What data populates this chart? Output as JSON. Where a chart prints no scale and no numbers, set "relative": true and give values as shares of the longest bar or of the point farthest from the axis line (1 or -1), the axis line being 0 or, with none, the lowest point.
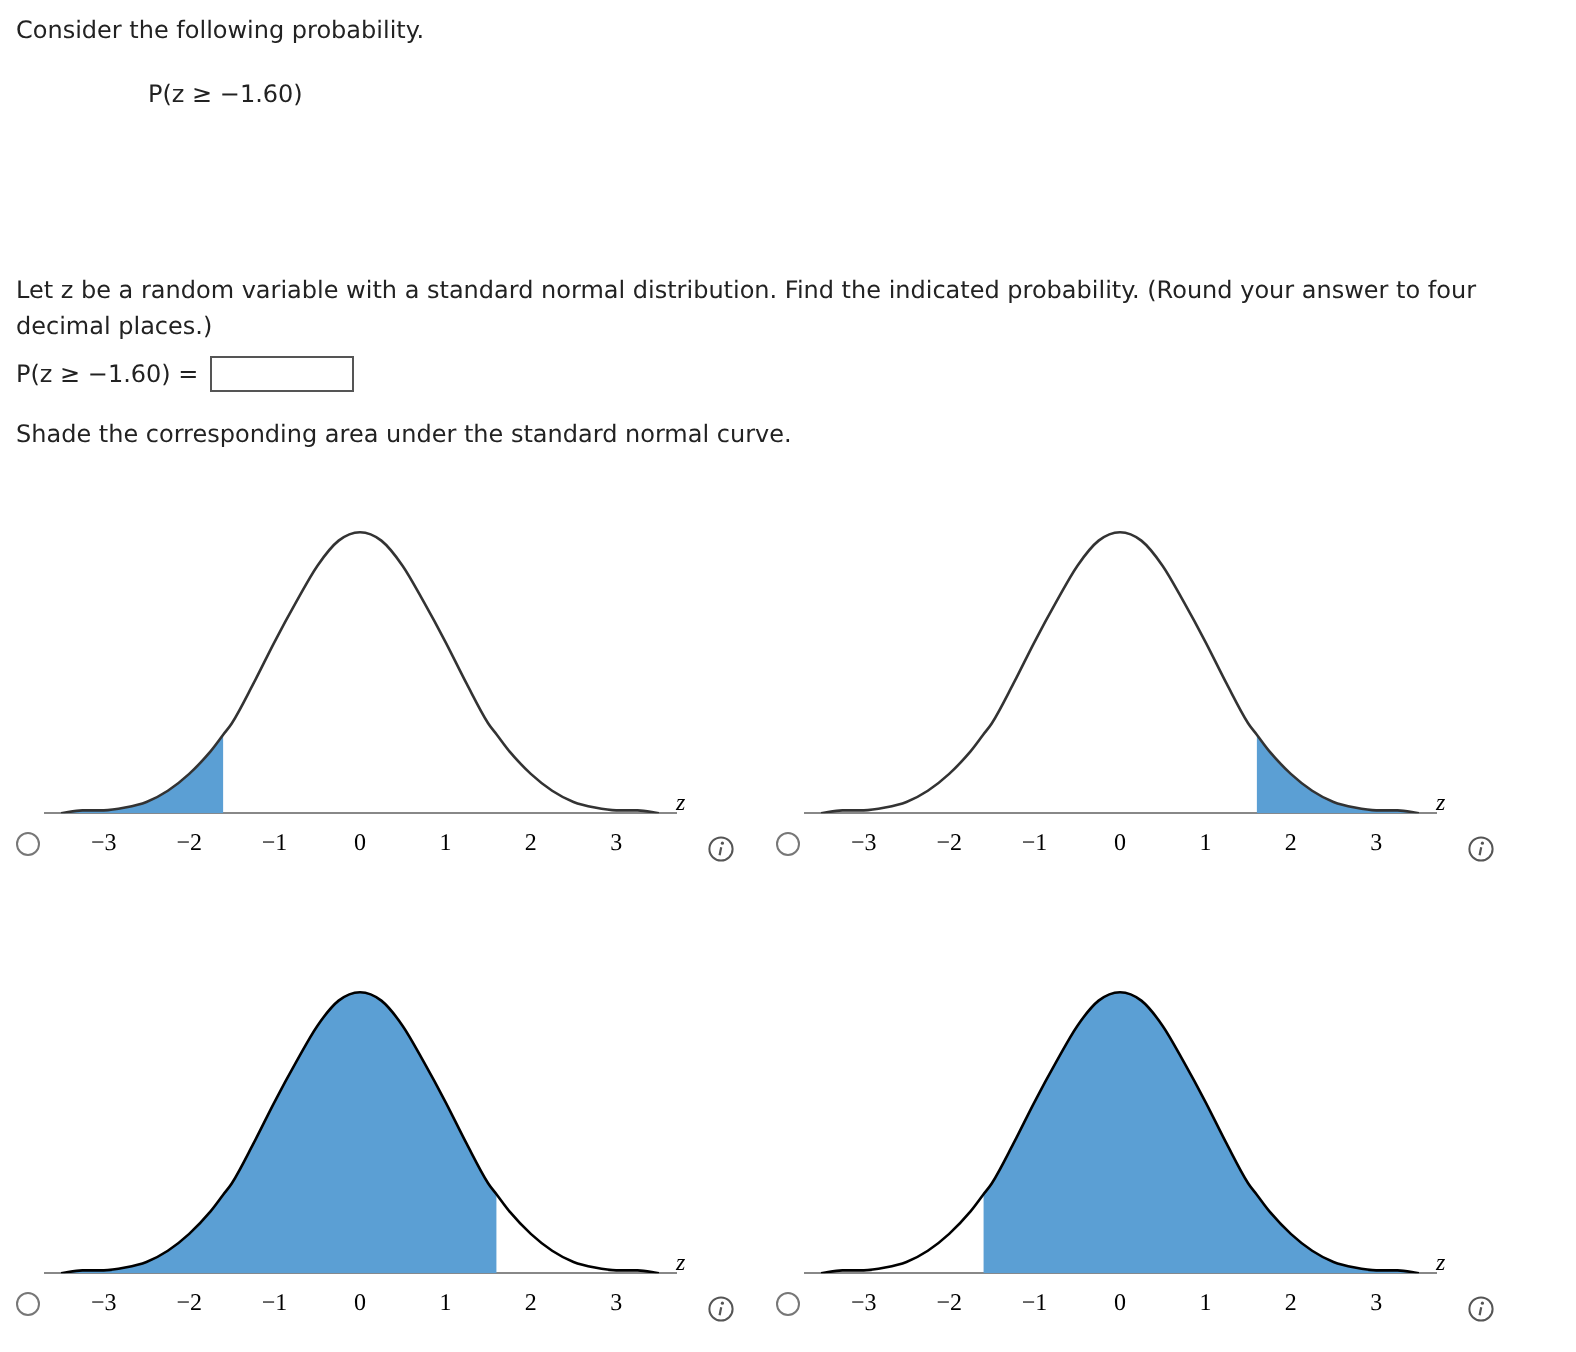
{
  "chart_data": [
    {
      "type": "other",
      "title": "Consider the following probability.",
      "annotations": [
        "P(z ≥ −1.60)",
        "Let z be a random variable with a standard normal distribution. Find the indicated probability. (Round your answer to four decimal places.)",
        "P(z ≥ −1.60) =",
        "Shade the corresponding area under the standard normal curve."
      ]
    },
    {
      "type": "area",
      "relative": true,
      "xlabel": "z",
      "xlim": [
        -3.7,
        3.7
      ],
      "xticks": [
        {
          "value": -3,
          "label": "−3"
        },
        {
          "value": -2,
          "label": "−2"
        },
        {
          "value": -1,
          "label": "−1"
        },
        0,
        1,
        2,
        3
      ],
      "tick_labels": "x",
      "legend": false,
      "grid": false,
      "x": [
        -3.5,
        -3.25,
        -3,
        -2.75,
        -2.5,
        -2.25,
        -2,
        -1.75,
        -1.6,
        -1.5,
        -1.25,
        -1,
        -0.75,
        -0.5,
        -0.25,
        0,
        0.25,
        0.5,
        0.75,
        1,
        1.25,
        1.5,
        1.6,
        1.75,
        2,
        2.25,
        2.5,
        2.75,
        3,
        3.25,
        3.5
      ],
      "series": [
        {
          "type": "area",
          "color": "#5b9fd4",
          "x": [
            -3.5,
            -3.25,
            -3,
            -2.75,
            -2.5,
            -2.25,
            -2,
            -1.75,
            -1.6
          ],
          "values": [
            0,
            0.01,
            0.01,
            0.02,
            0.04,
            0.08,
            0.14,
            0.22,
            0.28
          ]
        },
        {
          "type": "line",
          "color": "#333333",
          "values": [
            0,
            0.01,
            0.01,
            0.02,
            0.04,
            0.08,
            0.14,
            0.22,
            0.28,
            0.32,
            0.46,
            0.61,
            0.75,
            0.88,
            0.97,
            1,
            0.97,
            0.88,
            0.75,
            0.61,
            0.46,
            0.32,
            0.28,
            0.22,
            0.14,
            0.08,
            0.04,
            0.02,
            0.01,
            0.01,
            0
          ]
        }
      ]
    },
    {
      "type": "area",
      "relative": true,
      "xlabel": "z",
      "xlim": [
        -3.7,
        3.7
      ],
      "xticks": [
        {
          "value": -3,
          "label": "−3"
        },
        {
          "value": -2,
          "label": "−2"
        },
        {
          "value": -1,
          "label": "−1"
        },
        0,
        1,
        2,
        3
      ],
      "tick_labels": "x",
      "legend": false,
      "grid": false,
      "x": [
        -3.5,
        -3.25,
        -3,
        -2.75,
        -2.5,
        -2.25,
        -2,
        -1.75,
        -1.6,
        -1.5,
        -1.25,
        -1,
        -0.75,
        -0.5,
        -0.25,
        0,
        0.25,
        0.5,
        0.75,
        1,
        1.25,
        1.5,
        1.6,
        1.75,
        2,
        2.25,
        2.5,
        2.75,
        3,
        3.25,
        3.5
      ],
      "series": [
        {
          "type": "area",
          "color": "#5b9fd4",
          "x": [
            1.6,
            1.75,
            2,
            2.25,
            2.5,
            2.75,
            3,
            3.25,
            3.5
          ],
          "values": [
            0.28,
            0.22,
            0.14,
            0.08,
            0.04,
            0.02,
            0.01,
            0.01,
            0
          ]
        },
        {
          "type": "line",
          "color": "#333333",
          "values": [
            0,
            0.01,
            0.01,
            0.02,
            0.04,
            0.08,
            0.14,
            0.22,
            0.28,
            0.32,
            0.46,
            0.61,
            0.75,
            0.88,
            0.97,
            1,
            0.97,
            0.88,
            0.75,
            0.61,
            0.46,
            0.32,
            0.28,
            0.22,
            0.14,
            0.08,
            0.04,
            0.02,
            0.01,
            0.01,
            0
          ]
        }
      ]
    },
    {
      "type": "area",
      "relative": true,
      "xlabel": "z",
      "xlim": [
        -3.7,
        3.7
      ],
      "xticks": [
        {
          "value": -3,
          "label": "−3"
        },
        {
          "value": -2,
          "label": "−2"
        },
        {
          "value": -1,
          "label": "−1"
        },
        0,
        1,
        2,
        3
      ],
      "tick_labels": "x",
      "legend": false,
      "grid": false,
      "x": [
        -3.5,
        -3.25,
        -3,
        -2.75,
        -2.5,
        -2.25,
        -2,
        -1.75,
        -1.6,
        -1.5,
        -1.25,
        -1,
        -0.75,
        -0.5,
        -0.25,
        0,
        0.25,
        0.5,
        0.75,
        1,
        1.25,
        1.5,
        1.6,
        1.75,
        2,
        2.25,
        2.5,
        2.75,
        3,
        3.25,
        3.5
      ],
      "series": [
        {
          "type": "area",
          "color": "#5b9fd4",
          "x": [
            -3.5,
            -3.25,
            -3,
            -2.75,
            -2.5,
            -2.25,
            -2,
            -1.75,
            -1.6,
            -1.5,
            -1.25,
            -1,
            -0.75,
            -0.5,
            -0.25,
            0,
            0.25,
            0.5,
            0.75,
            1,
            1.25,
            1.5,
            1.6
          ],
          "values": [
            0,
            0.01,
            0.01,
            0.02,
            0.04,
            0.08,
            0.14,
            0.22,
            0.28,
            0.32,
            0.46,
            0.61,
            0.75,
            0.88,
            0.97,
            1,
            0.97,
            0.88,
            0.75,
            0.61,
            0.46,
            0.32,
            0.28
          ]
        },
        {
          "type": "line",
          "color": "#000000",
          "values": [
            0,
            0.01,
            0.01,
            0.02,
            0.04,
            0.08,
            0.14,
            0.22,
            0.28,
            0.32,
            0.46,
            0.61,
            0.75,
            0.88,
            0.97,
            1,
            0.97,
            0.88,
            0.75,
            0.61,
            0.46,
            0.32,
            0.28,
            0.22,
            0.14,
            0.08,
            0.04,
            0.02,
            0.01,
            0.01,
            0
          ]
        }
      ]
    },
    {
      "type": "area",
      "relative": true,
      "xlabel": "z",
      "xlim": [
        -3.7,
        3.7
      ],
      "xticks": [
        {
          "value": -3,
          "label": "−3"
        },
        {
          "value": -2,
          "label": "−2"
        },
        {
          "value": -1,
          "label": "−1"
        },
        0,
        1,
        2,
        3
      ],
      "tick_labels": "x",
      "legend": false,
      "grid": false,
      "x": [
        -3.5,
        -3.25,
        -3,
        -2.75,
        -2.5,
        -2.25,
        -2,
        -1.75,
        -1.6,
        -1.5,
        -1.25,
        -1,
        -0.75,
        -0.5,
        -0.25,
        0,
        0.25,
        0.5,
        0.75,
        1,
        1.25,
        1.5,
        1.6,
        1.75,
        2,
        2.25,
        2.5,
        2.75,
        3,
        3.25,
        3.5
      ],
      "series": [
        {
          "type": "area",
          "color": "#5b9fd4",
          "x": [
            -1.6,
            -1.5,
            -1.25,
            -1,
            -0.75,
            -0.5,
            -0.25,
            0,
            0.25,
            0.5,
            0.75,
            1,
            1.25,
            1.5,
            1.6,
            1.75,
            2,
            2.25,
            2.5,
            2.75,
            3,
            3.25,
            3.5
          ],
          "values": [
            0.28,
            0.32,
            0.46,
            0.61,
            0.75,
            0.88,
            0.97,
            1,
            0.97,
            0.88,
            0.75,
            0.61,
            0.46,
            0.32,
            0.28,
            0.22,
            0.14,
            0.08,
            0.04,
            0.02,
            0.01,
            0.01,
            0
          ]
        },
        {
          "type": "line",
          "color": "#000000",
          "values": [
            0,
            0.01,
            0.01,
            0.02,
            0.04,
            0.08,
            0.14,
            0.22,
            0.28,
            0.32,
            0.46,
            0.61,
            0.75,
            0.88,
            0.97,
            1,
            0.97,
            0.88,
            0.75,
            0.61,
            0.46,
            0.32,
            0.28,
            0.22,
            0.14,
            0.08,
            0.04,
            0.02,
            0.01,
            0.01,
            0
          ]
        }
      ]
    }
  ]
}
